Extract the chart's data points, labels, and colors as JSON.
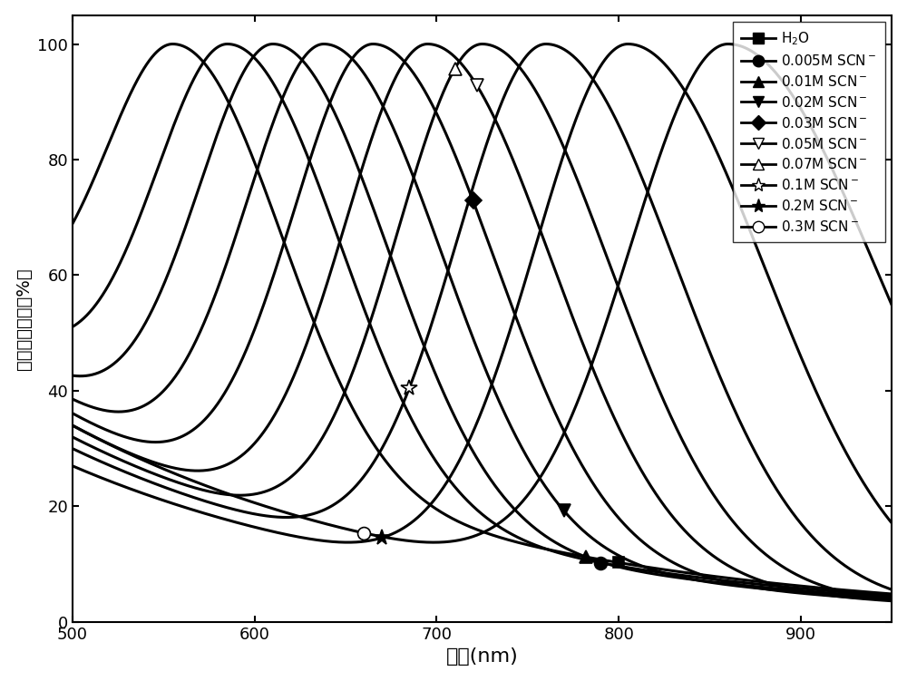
{
  "series": [
    {
      "label": "H$_2$O",
      "marker": "s",
      "peak": 555,
      "sigma_l": 42,
      "sigma_r": 55,
      "y0": 46,
      "filled": true,
      "mx": 800,
      "my_approx": 88
    },
    {
      "label": "0.005M SCN$^-$",
      "marker": "o",
      "peak": 585,
      "sigma_l": 43,
      "sigma_r": 58,
      "y0": 43,
      "filled": true,
      "mx": 790,
      "my_approx": 78
    },
    {
      "label": "0.01M SCN$^-$",
      "marker": "^",
      "peak": 610,
      "sigma_l": 44,
      "sigma_r": 60,
      "y0": 40,
      "filled": true,
      "mx": 782,
      "my_approx": 65
    },
    {
      "label": "0.02M SCN$^-$",
      "marker": "v",
      "peak": 638,
      "sigma_l": 45,
      "sigma_r": 62,
      "y0": 38,
      "filled": true,
      "mx": 770,
      "my_approx": 52
    },
    {
      "label": "0.03M SCN$^-$",
      "marker": "D",
      "peak": 665,
      "sigma_l": 46,
      "sigma_r": 64,
      "y0": 36,
      "filled": true,
      "mx": 720,
      "my_approx": 42
    },
    {
      "label": "0.05M SCN$^-$",
      "marker": "v",
      "peak": 695,
      "sigma_l": 47,
      "sigma_r": 66,
      "y0": 34,
      "filled": false,
      "mx": 722,
      "my_approx": 30
    },
    {
      "label": "0.07M SCN$^-$",
      "marker": "^",
      "peak": 725,
      "sigma_l": 48,
      "sigma_r": 68,
      "y0": 32,
      "filled": false,
      "mx": 710,
      "my_approx": 26
    },
    {
      "label": "0.1M SCN$^-$",
      "marker": "*",
      "peak": 760,
      "sigma_l": 50,
      "sigma_r": 70,
      "y0": 30,
      "filled": false,
      "mx": 685,
      "my_approx": 21
    },
    {
      "label": "0.2M SCN$^-$",
      "marker": "*",
      "peak": 805,
      "sigma_l": 52,
      "sigma_r": 74,
      "y0": 27,
      "filled": true,
      "mx": 670,
      "my_approx": 18
    },
    {
      "label": "0.3M SCN$^-$",
      "marker": "o",
      "peak": 860,
      "sigma_l": 55,
      "sigma_r": 80,
      "y0": 34,
      "filled": false,
      "mx": 660,
      "my_approx": 6
    }
  ],
  "xlim": [
    500,
    950
  ],
  "ylim": [
    0,
    105
  ],
  "xticks": [
    500,
    600,
    700,
    800,
    900
  ],
  "yticks": [
    0,
    20,
    40,
    60,
    80,
    100
  ],
  "xlabel": "波长(nm)",
  "ylabel": "归一化透射率（%）",
  "line_color": "#000000",
  "line_width": 2.2,
  "legend_labels": [
    "H$_2$O",
    "0.005M SCN$^-$",
    "0.01M SCN$^-$",
    "0.02M SCN$^-$",
    "0.03M SCN$^-$",
    "0.05M SCN$^-$",
    "0.07M SCN$^-$",
    "0.1M SCN$^-$",
    "0.2M SCN$^-$",
    "0.3M SCN$^-$"
  ],
  "legend_markers": [
    "s",
    "o",
    "^",
    "v",
    "D",
    "v",
    "^",
    "*",
    "*",
    "o"
  ],
  "legend_filled": [
    true,
    true,
    true,
    true,
    true,
    false,
    false,
    false,
    true,
    false
  ]
}
